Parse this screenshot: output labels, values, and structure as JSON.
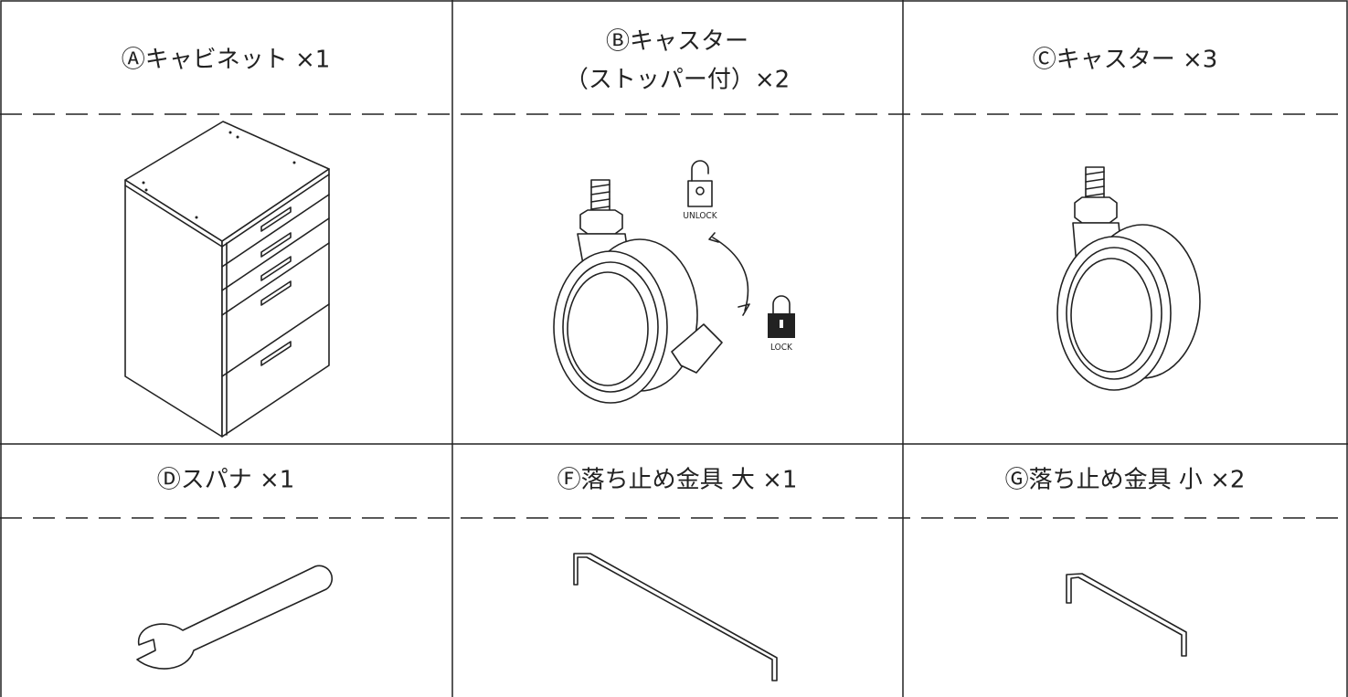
{
  "parts": [
    {
      "lines": [
        "Ⓐキャビネット ×1"
      ]
    },
    {
      "lines": [
        "Ⓑキャスター",
        "（ストッパー付）×2"
      ]
    },
    {
      "lines": [
        "Ⓒキャスター ×3"
      ]
    },
    {
      "lines": [
        "Ⓓスパナ ×1"
      ]
    },
    {
      "lines": [
        "Ⓕ落ち止め金具 大 ×1"
      ]
    },
    {
      "lines": [
        "Ⓖ落ち止め金具 小 ×2"
      ]
    }
  ],
  "lock_labels": {
    "unlock": "UNLOCK",
    "lock": "LOCK"
  }
}
